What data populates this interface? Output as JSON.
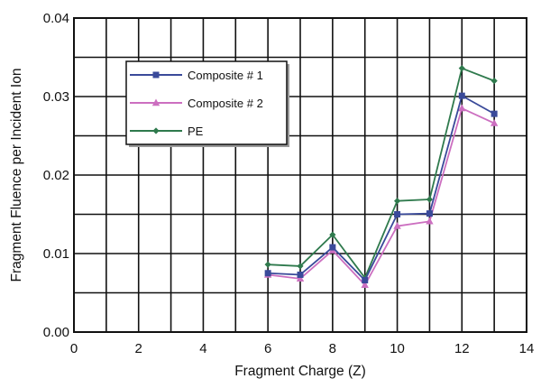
{
  "chart_data": {
    "type": "line",
    "title": "",
    "xlabel": "Fragment Charge (Z)",
    "ylabel": "Fragment Fluence per Incident Ion",
    "xlim": [
      0,
      14
    ],
    "ylim": [
      0,
      0.04
    ],
    "x_ticks": [
      "0",
      "2",
      "4",
      "6",
      "8",
      "10",
      "12",
      "14"
    ],
    "y_ticks": [
      "0.00",
      "0.01",
      "0.02",
      "0.03",
      "0.04"
    ],
    "grid": true,
    "legend_position": "upper-left",
    "series": [
      {
        "name": "Composite # 1",
        "color": "#3a4a9a",
        "marker": "square",
        "x": [
          6,
          7,
          8,
          9,
          10,
          11,
          12,
          13
        ],
        "y": [
          0.0075,
          0.0073,
          0.0108,
          0.0066,
          0.015,
          0.0151,
          0.0301,
          0.0278
        ]
      },
      {
        "name": "Composite # 2",
        "color": "#cc6fc0",
        "marker": "triangle",
        "x": [
          6,
          7,
          8,
          9,
          10,
          11,
          12,
          13
        ],
        "y": [
          0.0073,
          0.0068,
          0.0104,
          0.006,
          0.0135,
          0.0141,
          0.0285,
          0.0266
        ]
      },
      {
        "name": "PE",
        "color": "#2f7a4d",
        "marker": "diamond",
        "x": [
          6,
          7,
          8,
          9,
          10,
          11,
          12,
          13
        ],
        "y": [
          0.0086,
          0.0084,
          0.0124,
          0.0069,
          0.0167,
          0.0169,
          0.0336,
          0.032
        ]
      }
    ]
  }
}
